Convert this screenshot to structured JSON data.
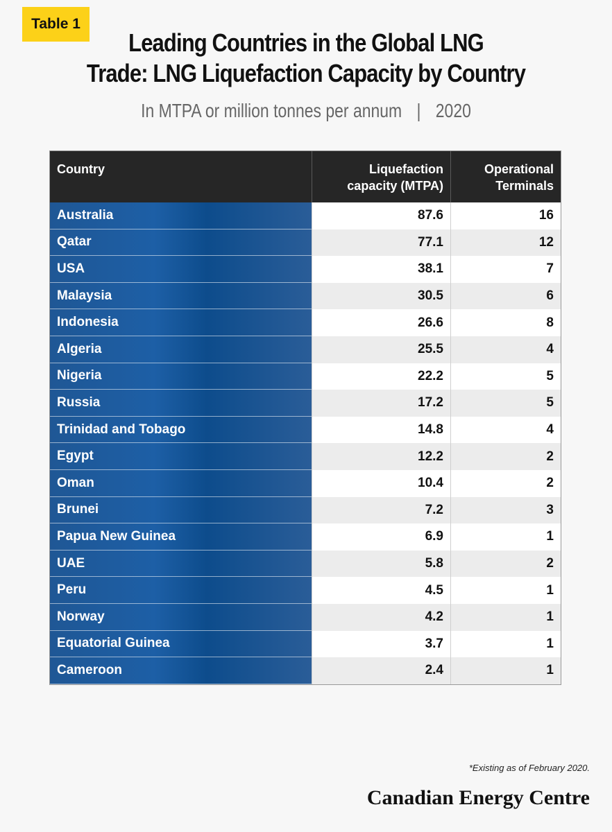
{
  "badge": "Table 1",
  "title_line1": "Leading Countries in the Global LNG",
  "title_line2": "Trade: LNG Liquefaction Capacity by Country",
  "subtitle_left": "In MTPA or million tonnes per annum",
  "subtitle_sep": "|",
  "subtitle_right": "2020",
  "footnote": "*Existing as of February 2020.",
  "brand": "Canadian Energy Centre",
  "colors": {
    "badge": "#fcd118",
    "header_bg": "#262626",
    "country_col": "#1d5fa6"
  },
  "chart_data": {
    "type": "table",
    "columns": [
      "Country",
      "Liquefaction capacity (MTPA)",
      "Operational Terminals"
    ],
    "header": {
      "country": "Country",
      "capacity_line1": "Liquefaction",
      "capacity_line2": "capacity (MTPA)",
      "terminals_line1": "Operational",
      "terminals_line2": "Terminals"
    },
    "rows": [
      {
        "country": "Australia",
        "capacity": "87.6",
        "terminals": "16"
      },
      {
        "country": "Qatar",
        "capacity": "77.1",
        "terminals": "12"
      },
      {
        "country": "USA",
        "capacity": "38.1",
        "terminals": "7"
      },
      {
        "country": "Malaysia",
        "capacity": "30.5",
        "terminals": "6"
      },
      {
        "country": "Indonesia",
        "capacity": "26.6",
        "terminals": "8"
      },
      {
        "country": "Algeria",
        "capacity": "25.5",
        "terminals": "4"
      },
      {
        "country": "Nigeria",
        "capacity": "22.2",
        "terminals": "5"
      },
      {
        "country": "Russia",
        "capacity": "17.2",
        "terminals": "5"
      },
      {
        "country": "Trinidad and Tobago",
        "capacity": "14.8",
        "terminals": "4"
      },
      {
        "country": "Egypt",
        "capacity": "12.2",
        "terminals": "2"
      },
      {
        "country": "Oman",
        "capacity": "10.4",
        "terminals": "2"
      },
      {
        "country": "Brunei",
        "capacity": "7.2",
        "terminals": "3"
      },
      {
        "country": "Papua New Guinea",
        "capacity": "6.9",
        "terminals": "1"
      },
      {
        "country": "UAE",
        "capacity": "5.8",
        "terminals": "2"
      },
      {
        "country": "Peru",
        "capacity": "4.5",
        "terminals": "1"
      },
      {
        "country": "Norway",
        "capacity": "4.2",
        "terminals": "1"
      },
      {
        "country": "Equatorial Guinea",
        "capacity": "3.7",
        "terminals": "1"
      },
      {
        "country": "Cameroon",
        "capacity": "2.4",
        "terminals": "1"
      }
    ]
  }
}
